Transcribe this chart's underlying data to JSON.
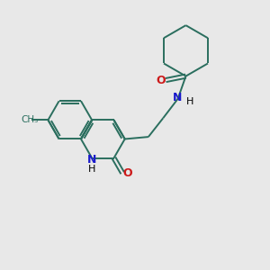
{
  "bg_color": "#e8e8e8",
  "bond_color": "#2a6e5e",
  "n_color": "#1a1acc",
  "o_color": "#cc1a1a",
  "text_color": "#000000",
  "line_width": 1.4,
  "figsize": [
    3.0,
    3.0
  ],
  "dpi": 100,
  "xlim": [
    0,
    10
  ],
  "ylim": [
    0,
    10
  ]
}
